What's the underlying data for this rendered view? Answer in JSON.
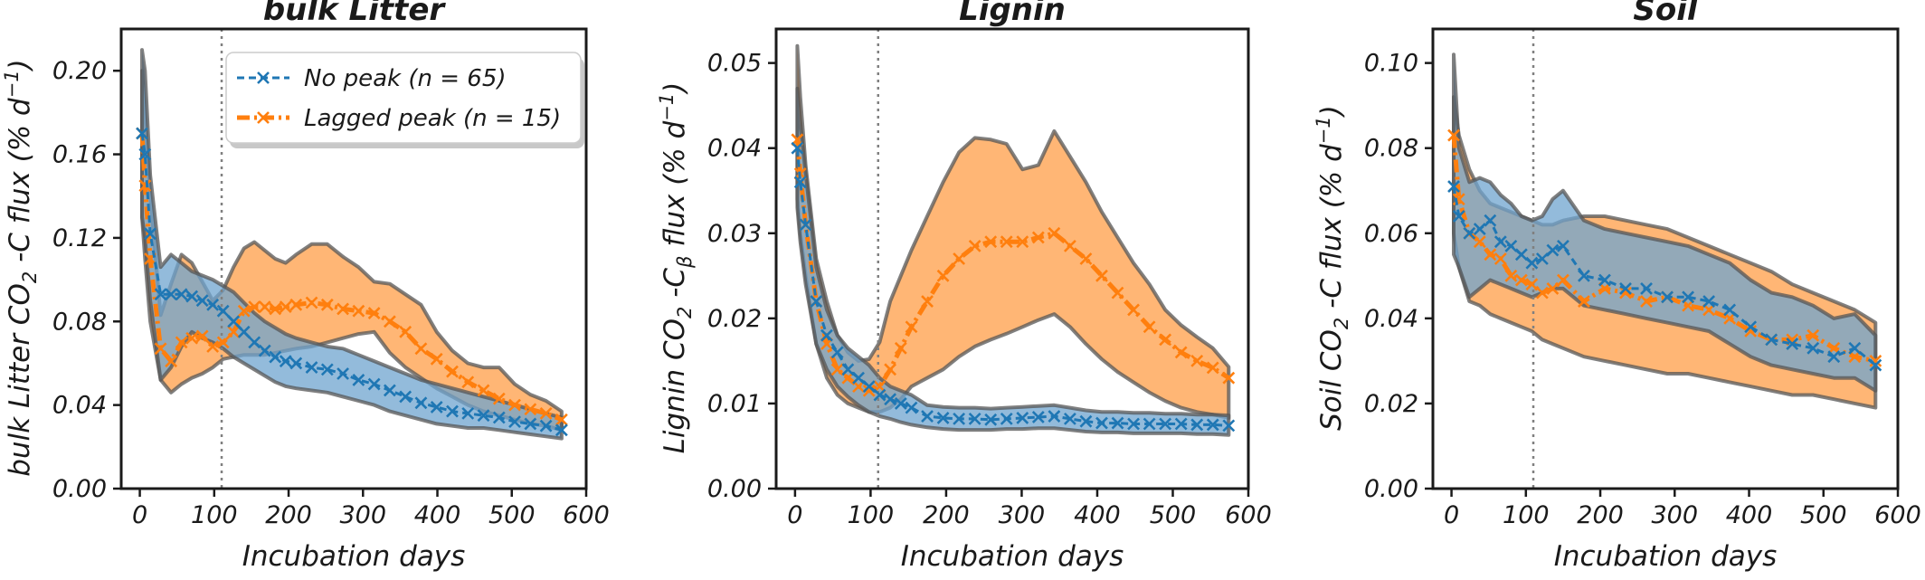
{
  "colors": {
    "no_peak": "#1f77b4",
    "no_peak_fill": "#6fa4cf",
    "lagged": "#ff7f0e",
    "lagged_fill": "#ffb26e",
    "band_edge": "#555555",
    "axis": "#1a1a1a",
    "vline": "#808080"
  },
  "legend": {
    "no_peak": "No peak (n = 65)",
    "lagged": "Lagged peak (n = 15)"
  },
  "chart_data": [
    {
      "type": "line",
      "title": "bulk Litter",
      "xlabel": "Incubation days",
      "ylabel": "bulk Litter CO₂ -C flux (% d⁻¹)",
      "xlim": [
        -25,
        600
      ],
      "ylim": [
        0,
        0.22
      ],
      "xticks": [
        "0",
        "100",
        "200",
        "300",
        "400",
        "500",
        "600"
      ],
      "yticks": [
        "0.00",
        "0.04",
        "0.08",
        "0.12",
        "0.16",
        "0.20"
      ],
      "vline_x": 110,
      "series": [
        {
          "name": "No peak (n = 65)",
          "x": [
            3,
            7,
            14,
            28,
            42,
            56,
            70,
            84,
            98,
            112,
            126,
            140,
            154,
            168,
            182,
            196,
            210,
            231,
            252,
            273,
            294,
            315,
            336,
            357,
            378,
            399,
            420,
            441,
            462,
            483,
            504,
            525,
            546,
            567
          ],
          "y": [
            0.17,
            0.16,
            0.122,
            0.093,
            0.093,
            0.093,
            0.092,
            0.09,
            0.088,
            0.085,
            0.08,
            0.075,
            0.07,
            0.066,
            0.063,
            0.061,
            0.06,
            0.058,
            0.057,
            0.055,
            0.052,
            0.05,
            0.047,
            0.044,
            0.041,
            0.039,
            0.037,
            0.036,
            0.035,
            0.034,
            0.032,
            0.031,
            0.03,
            0.028
          ],
          "lower": [
            0.13,
            0.12,
            0.09,
            0.052,
            0.058,
            0.068,
            0.075,
            0.072,
            0.07,
            0.067,
            0.063,
            0.06,
            0.057,
            0.054,
            0.051,
            0.049,
            0.048,
            0.047,
            0.046,
            0.044,
            0.042,
            0.04,
            0.037,
            0.035,
            0.033,
            0.031,
            0.03,
            0.029,
            0.029,
            0.028,
            0.027,
            0.026,
            0.025,
            0.024
          ],
          "upper": [
            0.21,
            0.2,
            0.15,
            0.106,
            0.112,
            0.108,
            0.104,
            0.102,
            0.1,
            0.097,
            0.094,
            0.089,
            0.084,
            0.08,
            0.077,
            0.074,
            0.072,
            0.07,
            0.068,
            0.067,
            0.064,
            0.061,
            0.058,
            0.055,
            0.052,
            0.05,
            0.048,
            0.046,
            0.044,
            0.042,
            0.04,
            0.038,
            0.036,
            0.034
          ]
        },
        {
          "name": "Lagged peak (n = 15)",
          "x": [
            3,
            7,
            14,
            28,
            42,
            56,
            70,
            84,
            98,
            112,
            126,
            140,
            154,
            168,
            182,
            196,
            210,
            231,
            252,
            273,
            294,
            315,
            336,
            357,
            378,
            399,
            420,
            441,
            462,
            483,
            504,
            525,
            546,
            567
          ],
          "y": [
            0.17,
            0.145,
            0.11,
            0.067,
            0.061,
            0.07,
            0.072,
            0.073,
            0.068,
            0.07,
            0.075,
            0.085,
            0.087,
            0.087,
            0.086,
            0.087,
            0.088,
            0.089,
            0.088,
            0.086,
            0.085,
            0.084,
            0.08,
            0.075,
            0.067,
            0.062,
            0.056,
            0.051,
            0.047,
            0.043,
            0.04,
            0.038,
            0.036,
            0.033
          ],
          "lower": [
            0.13,
            0.11,
            0.08,
            0.052,
            0.046,
            0.05,
            0.053,
            0.055,
            0.058,
            0.062,
            0.063,
            0.064,
            0.064,
            0.064,
            0.065,
            0.066,
            0.067,
            0.068,
            0.07,
            0.072,
            0.074,
            0.075,
            0.065,
            0.058,
            0.053,
            0.048,
            0.044,
            0.04,
            0.037,
            0.035,
            0.033,
            0.031,
            0.03,
            0.028
          ],
          "upper": [
            0.2,
            0.18,
            0.14,
            0.083,
            0.098,
            0.112,
            0.108,
            0.099,
            0.09,
            0.095,
            0.106,
            0.115,
            0.118,
            0.114,
            0.11,
            0.108,
            0.112,
            0.117,
            0.117,
            0.111,
            0.106,
            0.099,
            0.098,
            0.093,
            0.088,
            0.075,
            0.066,
            0.06,
            0.058,
            0.058,
            0.05,
            0.045,
            0.042,
            0.037
          ]
        }
      ]
    },
    {
      "type": "line",
      "title": "Lignin",
      "xlabel": "Incubation days",
      "ylabel": "Lignin CO₂ -Cβ flux (% d⁻¹)",
      "xlim": [
        -25,
        600
      ],
      "ylim": [
        0,
        0.054
      ],
      "xticks": [
        "0",
        "100",
        "200",
        "300",
        "400",
        "500",
        "600"
      ],
      "yticks": [
        "0.00",
        "0.01",
        "0.02",
        "0.03",
        "0.04",
        "0.05"
      ],
      "vline_x": 110,
      "series": [
        {
          "name": "No peak (n = 65)",
          "x": [
            3,
            7,
            14,
            28,
            42,
            56,
            70,
            84,
            98,
            112,
            126,
            140,
            154,
            175,
            196,
            217,
            238,
            259,
            280,
            301,
            322,
            343,
            364,
            385,
            406,
            427,
            448,
            469,
            490,
            511,
            532,
            553,
            574
          ],
          "y": [
            0.04,
            0.036,
            0.031,
            0.022,
            0.018,
            0.016,
            0.014,
            0.013,
            0.012,
            0.011,
            0.0105,
            0.01,
            0.0095,
            0.0085,
            0.0083,
            0.0082,
            0.0082,
            0.0081,
            0.0082,
            0.0083,
            0.0084,
            0.0085,
            0.0082,
            0.0079,
            0.0077,
            0.0077,
            0.0076,
            0.0076,
            0.0076,
            0.0076,
            0.0075,
            0.0075,
            0.0074
          ],
          "lower": [
            0.033,
            0.029,
            0.024,
            0.017,
            0.014,
            0.012,
            0.0108,
            0.0098,
            0.009,
            0.0085,
            0.0082,
            0.0078,
            0.0075,
            0.0072,
            0.007,
            0.0069,
            0.0069,
            0.0069,
            0.007,
            0.007,
            0.0071,
            0.0071,
            0.0069,
            0.0067,
            0.0066,
            0.0066,
            0.0065,
            0.0065,
            0.0065,
            0.0065,
            0.0064,
            0.0064,
            0.0063
          ],
          "upper": [
            0.047,
            0.043,
            0.037,
            0.026,
            0.021,
            0.018,
            0.0165,
            0.0155,
            0.0145,
            0.013,
            0.012,
            0.0115,
            0.011,
            0.0098,
            0.0096,
            0.0095,
            0.0095,
            0.0094,
            0.0095,
            0.0096,
            0.0097,
            0.0098,
            0.0095,
            0.0092,
            0.009,
            0.009,
            0.0089,
            0.0089,
            0.0088,
            0.0088,
            0.0087,
            0.0087,
            0.0086
          ]
        },
        {
          "name": "Lagged peak (n = 15)",
          "x": [
            3,
            7,
            14,
            28,
            42,
            56,
            70,
            84,
            98,
            112,
            126,
            140,
            154,
            175,
            196,
            217,
            238,
            259,
            280,
            301,
            322,
            343,
            364,
            385,
            406,
            427,
            448,
            469,
            490,
            511,
            532,
            553,
            574
          ],
          "y": [
            0.041,
            0.037,
            0.031,
            0.022,
            0.017,
            0.014,
            0.013,
            0.012,
            0.0115,
            0.012,
            0.014,
            0.0165,
            0.019,
            0.022,
            0.025,
            0.027,
            0.0285,
            0.029,
            0.029,
            0.029,
            0.0295,
            0.03,
            0.0285,
            0.027,
            0.025,
            0.023,
            0.021,
            0.019,
            0.0175,
            0.016,
            0.015,
            0.0142,
            0.013
          ],
          "lower": [
            0.034,
            0.03,
            0.025,
            0.017,
            0.013,
            0.011,
            0.01,
            0.0095,
            0.009,
            0.009,
            0.0095,
            0.0105,
            0.012,
            0.013,
            0.014,
            0.0155,
            0.0167,
            0.0175,
            0.0182,
            0.019,
            0.0198,
            0.0205,
            0.019,
            0.017,
            0.0152,
            0.0137,
            0.0125,
            0.0113,
            0.0103,
            0.0095,
            0.009,
            0.0087,
            0.0083
          ],
          "upper": [
            0.052,
            0.046,
            0.038,
            0.027,
            0.022,
            0.018,
            0.016,
            0.015,
            0.0152,
            0.0172,
            0.022,
            0.025,
            0.028,
            0.032,
            0.036,
            0.0395,
            0.0412,
            0.041,
            0.0405,
            0.0375,
            0.038,
            0.042,
            0.039,
            0.036,
            0.0325,
            0.0295,
            0.0265,
            0.024,
            0.021,
            0.0192,
            0.0178,
            0.0165,
            0.0143
          ]
        }
      ]
    },
    {
      "type": "line",
      "title": "Soil",
      "xlabel": "Incubation days",
      "ylabel": "Soil CO₂ -C flux (% d⁻¹)",
      "xlim": [
        -25,
        600
      ],
      "ylim": [
        0,
        0.108
      ],
      "xticks": [
        "0",
        "100",
        "200",
        "300",
        "400",
        "500",
        "600"
      ],
      "yticks": [
        "0.00",
        "0.02",
        "0.04",
        "0.06",
        "0.08",
        "0.10"
      ],
      "vline_x": 110,
      "series": [
        {
          "name": "No peak (n = 65)",
          "x": [
            3,
            10,
            24,
            38,
            52,
            66,
            80,
            94,
            108,
            122,
            136,
            150,
            178,
            206,
            234,
            262,
            290,
            318,
            346,
            374,
            402,
            430,
            458,
            486,
            514,
            542,
            570
          ],
          "y": [
            0.071,
            0.064,
            0.06,
            0.061,
            0.063,
            0.058,
            0.057,
            0.055,
            0.053,
            0.054,
            0.056,
            0.057,
            0.05,
            0.049,
            0.047,
            0.047,
            0.045,
            0.045,
            0.044,
            0.042,
            0.038,
            0.035,
            0.034,
            0.033,
            0.031,
            0.033,
            0.029
          ],
          "lower": [
            0.055,
            0.052,
            0.045,
            0.047,
            0.049,
            0.048,
            0.047,
            0.046,
            0.045,
            0.046,
            0.047,
            0.047,
            0.043,
            0.042,
            0.041,
            0.04,
            0.039,
            0.038,
            0.037,
            0.034,
            0.031,
            0.029,
            0.028,
            0.027,
            0.026,
            0.026,
            0.023
          ],
          "upper": [
            0.102,
            0.08,
            0.072,
            0.073,
            0.072,
            0.069,
            0.067,
            0.064,
            0.063,
            0.064,
            0.068,
            0.07,
            0.063,
            0.061,
            0.06,
            0.059,
            0.058,
            0.057,
            0.055,
            0.053,
            0.049,
            0.046,
            0.045,
            0.043,
            0.04,
            0.041,
            0.036
          ]
        },
        {
          "name": "Lagged peak (n = 15)",
          "x": [
            3,
            10,
            24,
            38,
            52,
            66,
            80,
            94,
            108,
            122,
            136,
            150,
            178,
            206,
            234,
            262,
            290,
            318,
            346,
            374,
            402,
            430,
            458,
            486,
            514,
            542,
            570
          ],
          "y": [
            0.083,
            0.068,
            0.06,
            0.058,
            0.055,
            0.054,
            0.05,
            0.049,
            0.048,
            0.046,
            0.047,
            0.049,
            0.044,
            0.047,
            0.046,
            0.044,
            0.045,
            0.043,
            0.042,
            0.04,
            0.037,
            0.035,
            0.035,
            0.036,
            0.033,
            0.031,
            0.03
          ],
          "lower": [
            0.06,
            0.052,
            0.044,
            0.043,
            0.041,
            0.04,
            0.039,
            0.038,
            0.037,
            0.035,
            0.034,
            0.033,
            0.031,
            0.03,
            0.029,
            0.028,
            0.027,
            0.027,
            0.026,
            0.025,
            0.024,
            0.023,
            0.022,
            0.022,
            0.021,
            0.02,
            0.019
          ],
          "upper": [
            0.092,
            0.083,
            0.075,
            0.07,
            0.067,
            0.066,
            0.065,
            0.064,
            0.063,
            0.062,
            0.062,
            0.063,
            0.064,
            0.064,
            0.063,
            0.062,
            0.061,
            0.059,
            0.057,
            0.055,
            0.053,
            0.051,
            0.048,
            0.046,
            0.044,
            0.042,
            0.039
          ]
        }
      ]
    }
  ]
}
